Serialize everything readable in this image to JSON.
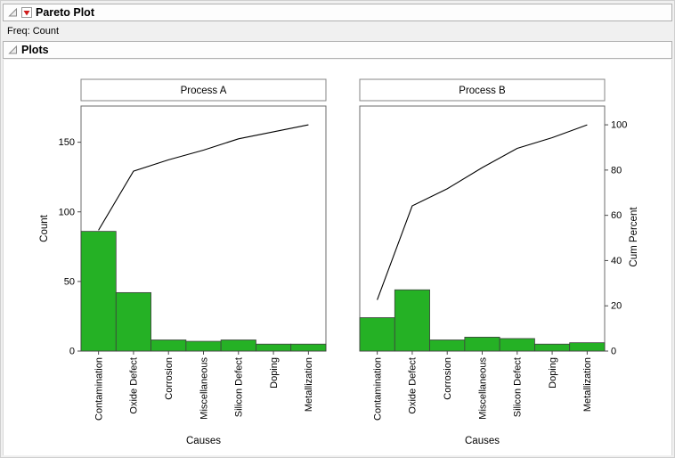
{
  "window": {
    "report_title": "Pareto Plot",
    "freq_label": "Freq: Count",
    "plots_title": "Plots"
  },
  "axes": {
    "left_label": "Count",
    "right_label": "Cum Percent",
    "left_ticks": [
      0,
      50,
      100,
      150
    ],
    "right_ticks": [
      0,
      20,
      40,
      60,
      80,
      100
    ],
    "left_max": 176,
    "right_max": 108.3
  },
  "colors": {
    "bar": "#25b125",
    "bar_border": "#3f3f3f",
    "line": "#000000",
    "frame": "#6b6b6b",
    "accent_red": "#cf1d1d"
  },
  "chart_data": [
    {
      "type": "bar",
      "subtype": "pareto",
      "title": "Process A",
      "categories": [
        "Contamination",
        "Oxide Defect",
        "Corrosion",
        "Miscellaneous",
        "Silicon Defect",
        "Doping",
        "Metallization"
      ],
      "series": [
        {
          "name": "Count",
          "values": [
            86,
            42,
            8,
            7,
            8,
            5,
            5
          ]
        },
        {
          "name": "Cum Percent",
          "values": [
            53.4,
            79.5,
            84.5,
            88.8,
            93.8,
            96.9,
            100
          ]
        }
      ],
      "xlabel": "Causes",
      "ylabel": "Count",
      "y2label": "Cum Percent",
      "ylim": [
        0,
        176
      ],
      "y2lim": [
        0,
        108.3
      ],
      "grid": false,
      "legend": "none"
    },
    {
      "type": "bar",
      "subtype": "pareto",
      "title": "Process B",
      "categories": [
        "Contamination",
        "Oxide Defect",
        "Corrosion",
        "Miscellaneous",
        "Silicon Defect",
        "Doping",
        "Metallization"
      ],
      "series": [
        {
          "name": "Count",
          "values": [
            24,
            44,
            8,
            10,
            9,
            5,
            6
          ]
        },
        {
          "name": "Cum Percent",
          "values": [
            22.6,
            64.2,
            71.7,
            81.1,
            89.6,
            94.3,
            100
          ]
        }
      ],
      "xlabel": "Causes",
      "ylabel": "Count",
      "y2label": "Cum Percent",
      "ylim": [
        0,
        176
      ],
      "y2lim": [
        0,
        108.3
      ],
      "grid": false,
      "legend": "none"
    }
  ]
}
